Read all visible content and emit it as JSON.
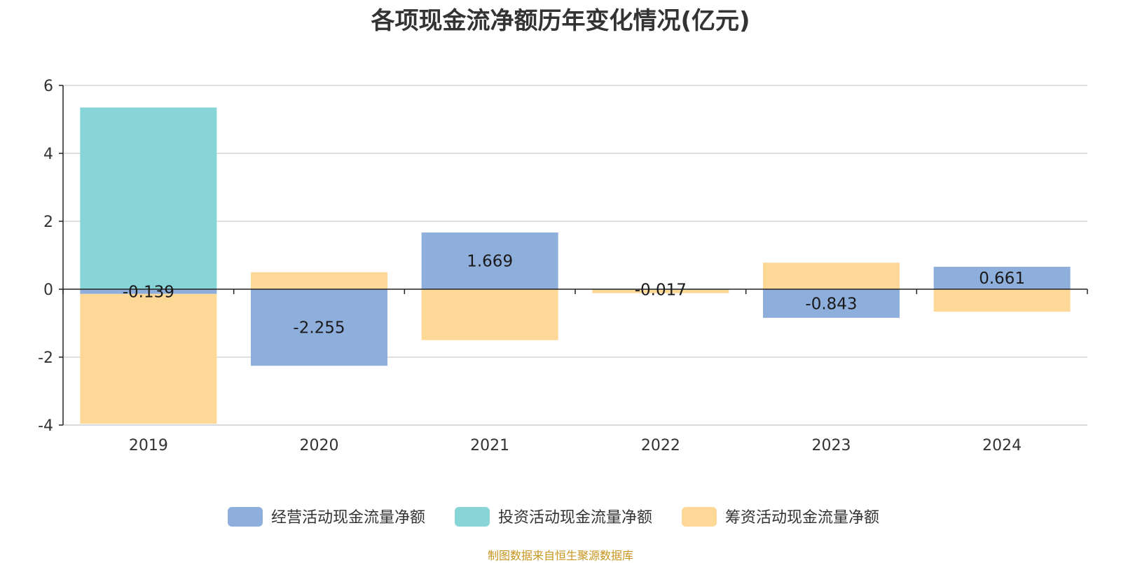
{
  "source_note": "制图数据来自恒生聚源数据库",
  "colors": {
    "operating": "#8eaedb",
    "investing": "#88d5d8",
    "financing": "#fed897",
    "grid": "#cccccc",
    "axis": "#222222",
    "text": "#333333"
  },
  "chart_data": {
    "type": "bar",
    "title": "各项现金流净额历年变化情况(亿元)",
    "xlabel": "",
    "ylabel": "",
    "categories": [
      "2019",
      "2020",
      "2021",
      "2022",
      "2023",
      "2024"
    ],
    "ylim": [
      -4,
      6
    ],
    "yticks": [
      -4,
      -2,
      0,
      2,
      4,
      6
    ],
    "grid": true,
    "legend_position": "bottom",
    "series": [
      {
        "name": "经营活动现金流量净额",
        "color_key": "operating",
        "values": [
          -0.139,
          -2.255,
          1.669,
          -0.017,
          -0.843,
          0.661
        ],
        "labels": [
          "-0.139",
          "-2.255",
          "1.669",
          "-0.017",
          "-0.843",
          "0.661"
        ]
      },
      {
        "name": "投资活动现金流量净额",
        "color_key": "investing",
        "values": [
          5.35,
          0,
          0,
          0,
          0,
          0
        ]
      },
      {
        "name": "筹资活动现金流量净额",
        "color_key": "financing",
        "values": [
          -3.82,
          0.5,
          -1.5,
          -0.1,
          0.78,
          -0.66
        ]
      }
    ]
  }
}
